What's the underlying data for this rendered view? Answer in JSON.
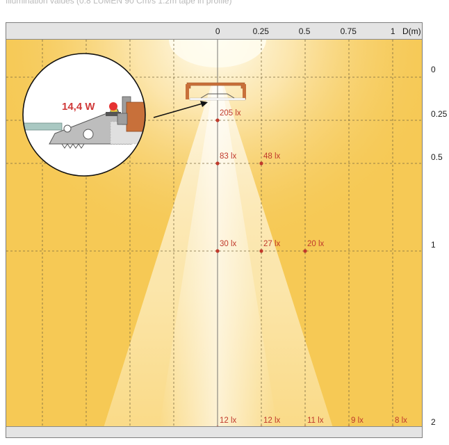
{
  "caption": "Illumination values (0.8 LUMEN 90 Cm/s 1.2m tape in profile)",
  "axis": {
    "x_ticks": [
      "0",
      "0.25",
      "0.5",
      "0.75",
      "1"
    ],
    "x_unit": "D(m)",
    "y_ticks": [
      "0",
      "0.25",
      "0.5",
      "1",
      "2"
    ]
  },
  "detail": {
    "power": "14,4 W"
  },
  "colors": {
    "background": "#f5c95a",
    "light_cone": "#fffdf4",
    "lux_text": "#c0392b",
    "profile": "#c8703a"
  },
  "chart_data": {
    "type": "illuminance-map",
    "xlabel": "D(m)",
    "measurements": [
      {
        "d": 0,
        "h": 0.25,
        "label": "205 lx"
      },
      {
        "d": 0,
        "h": 0.5,
        "label": "83 lx"
      },
      {
        "d": 0.25,
        "h": 0.5,
        "label": "48 lx"
      },
      {
        "d": 0,
        "h": 1,
        "label": "30 lx"
      },
      {
        "d": 0.25,
        "h": 1,
        "label": "27 lx"
      },
      {
        "d": 0.5,
        "h": 1,
        "label": "20 lx"
      },
      {
        "d": 0,
        "h": 2,
        "label": "12 lx"
      },
      {
        "d": 0.25,
        "h": 2,
        "label": "12 lx"
      },
      {
        "d": 0.5,
        "h": 2,
        "label": "11 lx"
      },
      {
        "d": 0.75,
        "h": 2,
        "label": "9 lx"
      },
      {
        "d": 1,
        "h": 2,
        "label": "8 lx"
      }
    ]
  }
}
